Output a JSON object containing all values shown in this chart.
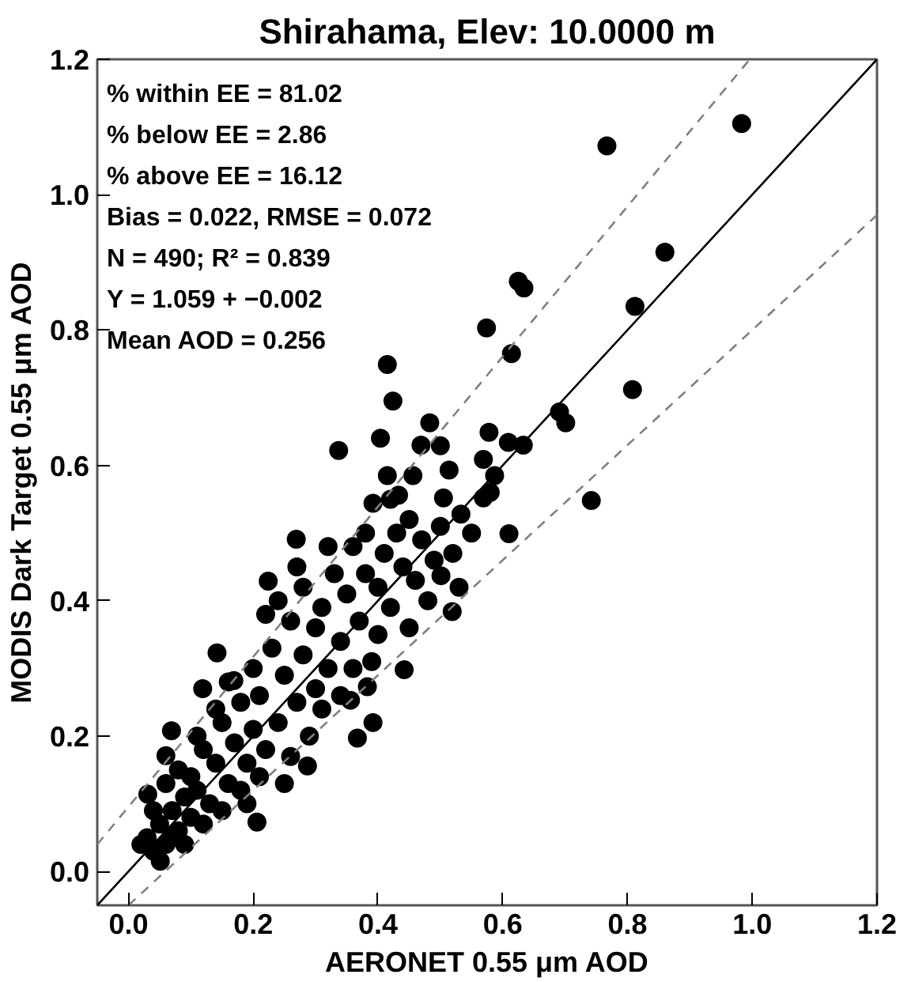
{
  "chart_data": {
    "type": "scatter",
    "title": "Shirahama, Elev: 10.0000 m",
    "xlabel": "AERONET 0.55 μm AOD",
    "ylabel": "MODIS Dark Target 0.55 μm AOD",
    "annotations": [
      "% within EE =   81.02",
      "% below EE =    2.86",
      "% above EE =   16.12",
      "Bias =  0.022, RMSE =  0.072",
      "N =    490; R² =  0.839",
      "Y  =  1.059 + −0.002",
      "Mean AOD =   0.256"
    ],
    "xlim": [
      -0.05,
      1.2
    ],
    "ylim": [
      -0.05,
      1.2
    ],
    "xticks": [
      {
        "value": 0,
        "label": "0.0"
      },
      {
        "value": 0.2,
        "label": "0.2"
      },
      {
        "value": 0.4,
        "label": "0.4"
      },
      {
        "value": 0.6,
        "label": "0.6"
      },
      {
        "value": 0.8,
        "label": "0.8"
      },
      {
        "value": 1.0,
        "label": "1.0"
      },
      {
        "value": 1.2,
        "label": "1.2"
      }
    ],
    "yticks": [
      {
        "value": 0,
        "label": "0.0"
      },
      {
        "value": 0.2,
        "label": "0.2"
      },
      {
        "value": 0.4,
        "label": "0.4"
      },
      {
        "value": 0.6,
        "label": "0.6"
      },
      {
        "value": 0.8,
        "label": "0.8"
      },
      {
        "value": 1.0,
        "label": "1.0"
      },
      {
        "value": 1.2,
        "label": "1.2"
      }
    ],
    "grid": false,
    "series": [
      {
        "marker": "circle",
        "color": "#000000",
        "x": [
          0.983,
          0.767,
          0.86,
          0.625,
          0.634,
          0.812,
          0.574,
          0.614,
          0.415,
          0.424,
          0.808,
          0.691,
          0.701,
          0.483,
          0.404,
          0.578,
          0.609,
          0.633,
          0.337,
          0.469,
          0.5,
          0.569,
          0.415,
          0.456,
          0.514,
          0.587,
          0.392,
          0.433,
          0.505,
          0.533,
          0.569,
          0.742,
          0.61,
          0.519,
          0.501,
          0.442,
          0.383,
          0.356,
          0.392,
          0.367,
          0.287,
          0.206,
          0.269,
          0.142,
          0.224,
          0.119,
          0.169,
          0.069,
          0.06,
          0.031,
          0.02,
          0.051,
          0.03,
          0.04,
          0.05,
          0.06,
          0.07,
          0.08,
          0.09,
          0.1,
          0.04,
          0.06,
          0.08,
          0.1,
          0.07,
          0.09,
          0.11,
          0.12,
          0.13,
          0.14,
          0.15,
          0.16,
          0.17,
          0.18,
          0.19,
          0.2,
          0.12,
          0.14,
          0.16,
          0.18,
          0.2,
          0.11,
          0.15,
          0.19,
          0.21,
          0.22,
          0.23,
          0.24,
          0.25,
          0.26,
          0.27,
          0.28,
          0.29,
          0.3,
          0.22,
          0.24,
          0.26,
          0.28,
          0.3,
          0.21,
          0.25,
          0.27,
          0.31,
          0.32,
          0.33,
          0.34,
          0.35,
          0.36,
          0.37,
          0.38,
          0.39,
          0.4,
          0.32,
          0.34,
          0.36,
          0.38,
          0.4,
          0.31,
          0.41,
          0.42,
          0.43,
          0.44,
          0.45,
          0.46,
          0.47,
          0.48,
          0.49,
          0.5,
          0.42,
          0.45,
          0.52,
          0.55,
          0.53,
          0.58
        ],
        "values": [
          1.105,
          1.072,
          0.915,
          0.872,
          0.862,
          0.835,
          0.803,
          0.765,
          0.749,
          0.695,
          0.712,
          0.679,
          0.663,
          0.663,
          0.64,
          0.649,
          0.634,
          0.63,
          0.622,
          0.63,
          0.629,
          0.609,
          0.585,
          0.585,
          0.593,
          0.585,
          0.544,
          0.556,
          0.552,
          0.528,
          0.552,
          0.548,
          0.499,
          0.384,
          0.437,
          0.298,
          0.273,
          0.253,
          0.22,
          0.197,
          0.156,
          0.073,
          0.491,
          0.323,
          0.429,
          0.27,
          0.282,
          0.208,
          0.171,
          0.114,
          0.04,
          0.015,
          0.05,
          0.03,
          0.07,
          0.04,
          0.09,
          0.06,
          0.11,
          0.08,
          0.09,
          0.13,
          0.15,
          0.14,
          0.05,
          0.04,
          0.12,
          0.18,
          0.1,
          0.16,
          0.22,
          0.13,
          0.19,
          0.25,
          0.16,
          0.21,
          0.07,
          0.24,
          0.28,
          0.12,
          0.3,
          0.2,
          0.09,
          0.1,
          0.26,
          0.18,
          0.33,
          0.22,
          0.29,
          0.37,
          0.25,
          0.32,
          0.2,
          0.36,
          0.38,
          0.4,
          0.17,
          0.42,
          0.27,
          0.14,
          0.13,
          0.45,
          0.39,
          0.3,
          0.44,
          0.34,
          0.41,
          0.48,
          0.37,
          0.44,
          0.31,
          0.42,
          0.48,
          0.26,
          0.3,
          0.5,
          0.35,
          0.24,
          0.47,
          0.39,
          0.5,
          0.45,
          0.52,
          0.43,
          0.49,
          0.4,
          0.46,
          0.51,
          0.55,
          0.36,
          0.47,
          0.5,
          0.42,
          0.56
        ]
      },
      {
        "type": "line",
        "color": "#000000",
        "line_style": "solid",
        "x": [
          -0.05,
          1.2
        ],
        "values": [
          -0.05,
          1.2
        ]
      },
      {
        "type": "line",
        "color": "#808080",
        "line_style": "dashed",
        "x": [
          -0.05,
          0.996
        ],
        "values": [
          0.04,
          1.2
        ]
      },
      {
        "type": "line",
        "color": "#808080",
        "line_style": "dashed",
        "x": [
          0,
          1.2
        ],
        "values": [
          -0.05,
          0.97
        ]
      }
    ]
  }
}
